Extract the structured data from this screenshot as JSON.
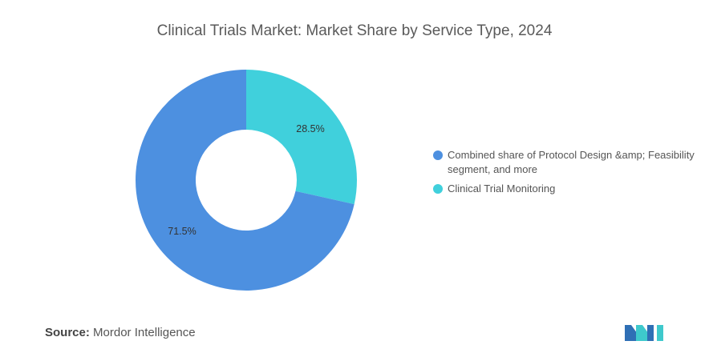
{
  "chart_data": {
    "type": "pie",
    "title": "Clinical Trials Market: Market Share by Service Type, 2024",
    "donut": true,
    "slices": [
      {
        "label": "Combined share of Protocol Design &amp; Feasibility segment, and more",
        "value": 71.5,
        "display": "71.5%",
        "color": "#4d90e0"
      },
      {
        "label": "Clinical Trial Monitoring",
        "value": 28.5,
        "display": "28.5%",
        "color": "#40d0dc"
      }
    ],
    "legend_position": "right"
  },
  "source": {
    "prefix": "Source:",
    "text": "Mordor Intelligence"
  },
  "logo": {
    "name": "mordor-intelligence-logo",
    "colors": [
      "#2f6fb5",
      "#3ec9cc"
    ]
  }
}
